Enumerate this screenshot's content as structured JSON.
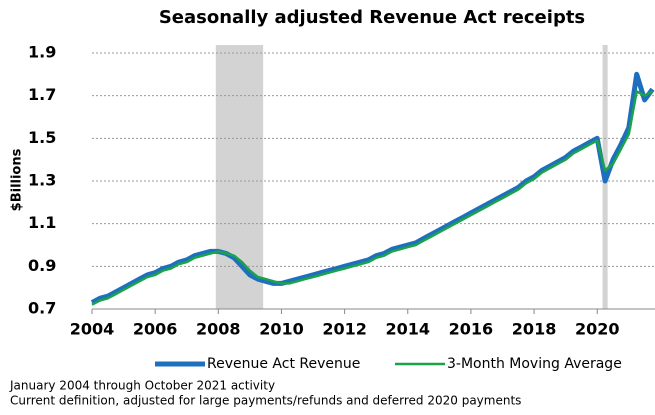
{
  "chart_data": {
    "type": "line",
    "title": "Seasonally adjusted Revenue Act receipts",
    "y_label": "$Billions",
    "x": [
      2004,
      2004.25,
      2004.5,
      2004.75,
      2005,
      2005.25,
      2005.5,
      2005.75,
      2006,
      2006.25,
      2006.5,
      2006.75,
      2007,
      2007.25,
      2007.5,
      2007.75,
      2008,
      2008.25,
      2008.5,
      2008.75,
      2009,
      2009.25,
      2009.5,
      2009.75,
      2010,
      2010.25,
      2010.5,
      2010.75,
      2011,
      2011.25,
      2011.5,
      2011.75,
      2012,
      2012.25,
      2012.5,
      2012.75,
      2013,
      2013.25,
      2013.5,
      2013.75,
      2014,
      2014.25,
      2014.5,
      2014.75,
      2015,
      2015.25,
      2015.5,
      2015.75,
      2016,
      2016.25,
      2016.5,
      2016.75,
      2017,
      2017.25,
      2017.5,
      2017.75,
      2018,
      2018.25,
      2018.5,
      2018.75,
      2019,
      2019.25,
      2019.5,
      2019.75,
      2020,
      2020.25,
      2020.5,
      2020.75,
      2021,
      2021.25,
      2021.5,
      2021.75
    ],
    "series": [
      {
        "name": "Revenue Act Revenue",
        "color": "#1f6fbf",
        "values": [
          0.73,
          0.75,
          0.76,
          0.78,
          0.8,
          0.82,
          0.84,
          0.86,
          0.87,
          0.89,
          0.9,
          0.92,
          0.93,
          0.95,
          0.96,
          0.97,
          0.97,
          0.96,
          0.94,
          0.9,
          0.86,
          0.84,
          0.83,
          0.82,
          0.82,
          0.83,
          0.84,
          0.85,
          0.86,
          0.87,
          0.88,
          0.89,
          0.9,
          0.91,
          0.92,
          0.93,
          0.95,
          0.96,
          0.98,
          0.99,
          1.0,
          1.01,
          1.03,
          1.05,
          1.07,
          1.09,
          1.11,
          1.13,
          1.15,
          1.17,
          1.19,
          1.21,
          1.23,
          1.25,
          1.27,
          1.3,
          1.32,
          1.35,
          1.37,
          1.39,
          1.41,
          1.44,
          1.46,
          1.48,
          1.5,
          1.3,
          1.4,
          1.47,
          1.55,
          1.8,
          1.68,
          1.73
        ]
      },
      {
        "name": "3-Month Moving Average",
        "color": "#1aa34a",
        "values": [
          0.72,
          0.74,
          0.75,
          0.77,
          0.79,
          0.81,
          0.83,
          0.85,
          0.86,
          0.88,
          0.89,
          0.91,
          0.92,
          0.94,
          0.95,
          0.96,
          0.97,
          0.96,
          0.95,
          0.92,
          0.88,
          0.85,
          0.84,
          0.83,
          0.82,
          0.82,
          0.83,
          0.84,
          0.85,
          0.86,
          0.87,
          0.88,
          0.89,
          0.9,
          0.91,
          0.92,
          0.94,
          0.95,
          0.97,
          0.98,
          0.99,
          1.0,
          1.02,
          1.04,
          1.06,
          1.08,
          1.1,
          1.12,
          1.14,
          1.16,
          1.18,
          1.2,
          1.22,
          1.24,
          1.26,
          1.29,
          1.31,
          1.34,
          1.36,
          1.38,
          1.4,
          1.43,
          1.45,
          1.47,
          1.49,
          1.35,
          1.38,
          1.45,
          1.52,
          1.72,
          1.7,
          1.72
        ]
      }
    ],
    "shaded": [
      [
        2007.92,
        2009.42
      ],
      [
        2020.17,
        2020.33
      ]
    ],
    "xlim": [
      2004,
      2021.83
    ],
    "xticks": [
      2004,
      2006,
      2008,
      2010,
      2012,
      2014,
      2016,
      2018,
      2020
    ],
    "ylim": [
      0.7,
      1.9
    ],
    "yticks": [
      0.7,
      0.9,
      1.1,
      1.3,
      1.5,
      1.7,
      1.9
    ],
    "grid": true,
    "notes": [
      "January 2004 through October 2021 activity",
      "Current definition, adjusted for large payments/refunds and deferred 2020 payments"
    ]
  }
}
